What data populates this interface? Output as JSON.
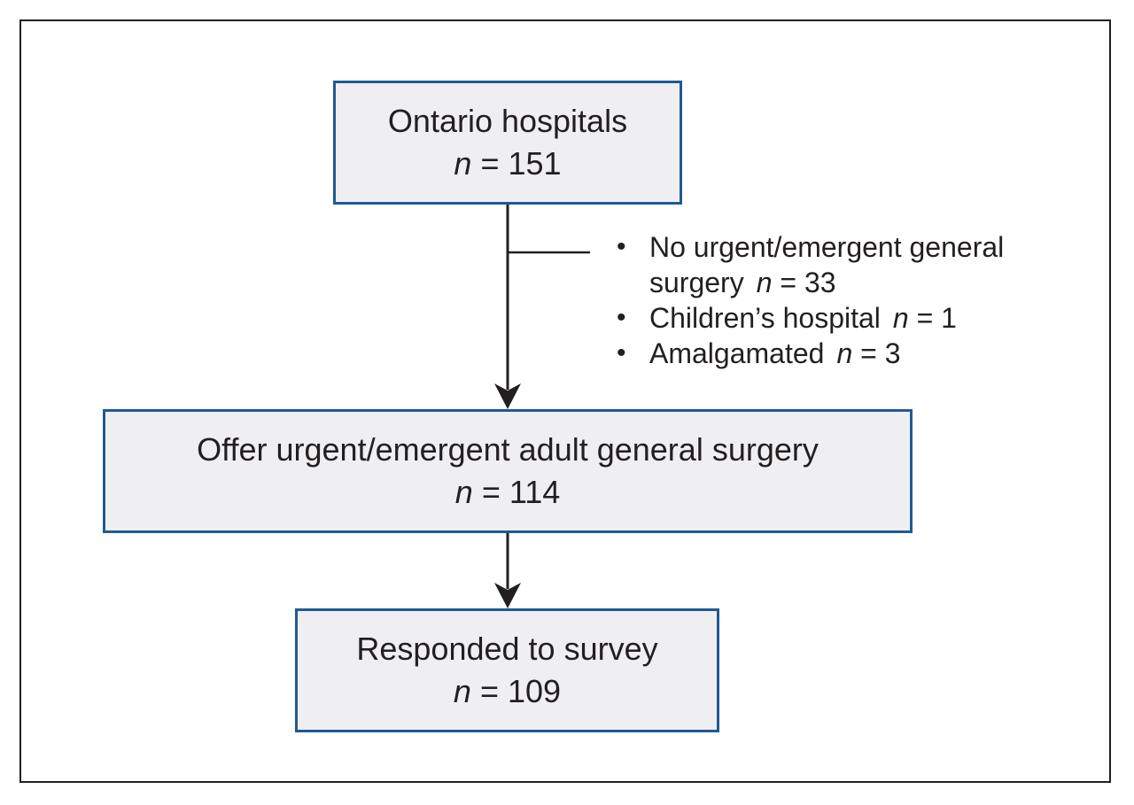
{
  "boxes": {
    "ontario": {
      "title": "Ontario hospitals",
      "n_label": "n",
      "n_value": "= 151"
    },
    "offer": {
      "title": "Offer urgent/emergent adult general surgery",
      "n_label": "n",
      "n_value": "= 114"
    },
    "responded": {
      "title": "Responded to survey",
      "n_label": "n",
      "n_value": "= 109"
    }
  },
  "exclusions": [
    {
      "text": "No urgent/emergent general surgery",
      "n_label": "n",
      "n_value": "= 33"
    },
    {
      "text": "Children’s hospital",
      "n_label": "n",
      "n_value": "= 1"
    },
    {
      "text": "Amalgamated",
      "n_label": "n",
      "n_value": "= 3"
    }
  ],
  "bullet_glyph": "•",
  "colors": {
    "box_border": "#1f5a96",
    "box_fill": "#efeff1",
    "text": "#231f20",
    "frame": "#231f20"
  }
}
